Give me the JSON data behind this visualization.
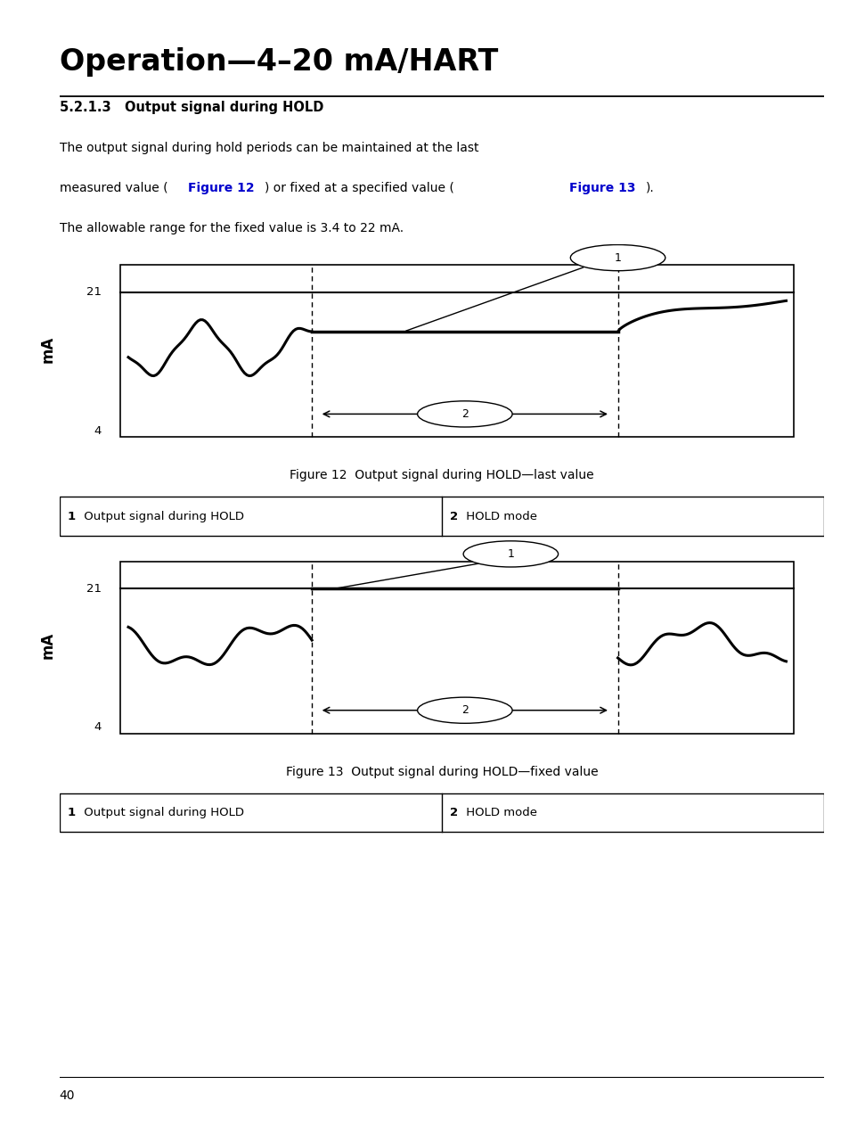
{
  "title": "Operation—4–20 mA/HART",
  "section": "5.2.1.3   Output signal during HOLD",
  "fig12_caption": "Figure 12  Output signal during HOLD—last value",
  "fig13_caption": "Figure 13  Output signal during HOLD—fixed value",
  "legend_col1_num": "1",
  "legend_col1_text": " Output signal during HOLD",
  "legend_col2_num": "2",
  "legend_col2_text": " HOLD mode",
  "ylabel": "mA",
  "ytick_top": "21",
  "ytick_bottom": "4",
  "page_number": "40",
  "bg_color": "#ffffff",
  "text_color": "#000000",
  "blue_color": "#0000cc",
  "body_line1": "The output signal during hold periods can be maintained at the last",
  "body_line2_pre": "measured value (",
  "body_fig12": "Figure 12",
  "body_line2_mid": ") or fixed at a specified value (",
  "body_fig13": "Figure 13",
  "body_line2_post": ").",
  "body_line3": "The allowable range for the fixed value is 3.4 to 22 mA."
}
